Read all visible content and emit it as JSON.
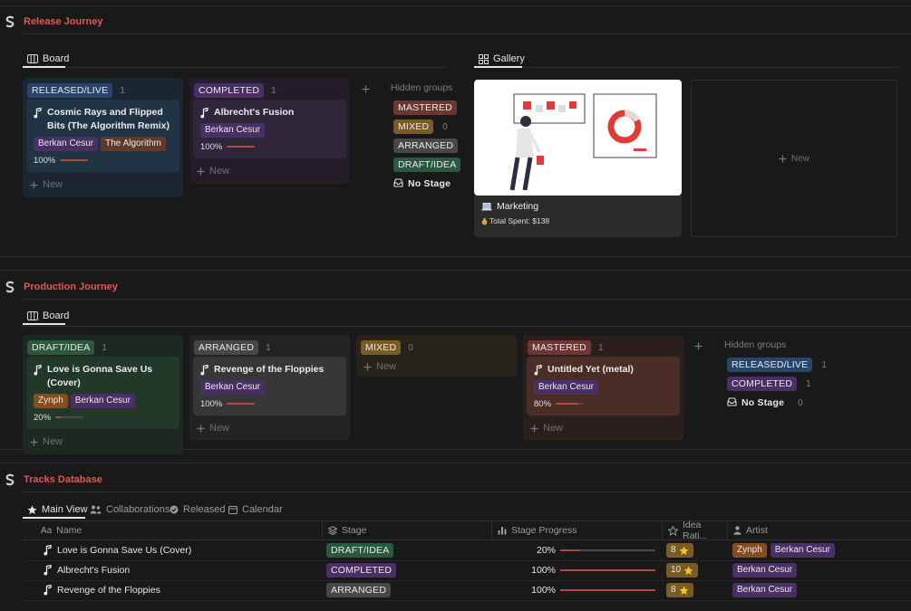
{
  "labels": {
    "new": "New",
    "hidden_groups": "Hidden groups"
  },
  "release_journey": {
    "title": "Release Journey",
    "board": {
      "tab": "Board",
      "columns": [
        {
          "stage": "RELEASED/LIVE",
          "color": "blue",
          "count": 1,
          "cards": [
            {
              "title": "Cosmic Rays and Flipped Bits (The Algorithm Remix)",
              "tags": [
                {
                  "name": "Berkan Cesur",
                  "color": "purple"
                },
                {
                  "name": "The Algorithm",
                  "color": "brown"
                }
              ],
              "progress": {
                "value": 100,
                "label": "100%"
              }
            }
          ]
        },
        {
          "stage": "COMPLETED",
          "color": "purple",
          "count": 1,
          "cards": [
            {
              "title": "Albrecht's Fusion",
              "tags": [
                {
                  "name": "Berkan Cesur",
                  "color": "purple"
                }
              ],
              "progress": {
                "value": 100,
                "label": "100%"
              }
            }
          ]
        }
      ],
      "hidden_groups": [
        {
          "stage": "MASTERED",
          "color": "red"
        },
        {
          "stage": "MIXED",
          "color": "yellow",
          "count": 0
        },
        {
          "stage": "ARRANGED",
          "color": "gray"
        },
        {
          "stage": "DRAFT/IDEA",
          "color": "green"
        },
        {
          "stage": "No Stage",
          "color": "none"
        }
      ]
    },
    "gallery": {
      "tab": "Gallery",
      "cards": [
        {
          "title": "Marketing",
          "property": "Total Spent: $138"
        }
      ]
    }
  },
  "production_journey": {
    "title": "Production Journey",
    "board": {
      "tab": "Board",
      "columns": [
        {
          "stage": "DRAFT/IDEA",
          "color": "green",
          "count": 1,
          "cards": [
            {
              "title": "Love is Gonna Save Us (Cover)",
              "tags": [
                {
                  "name": "Zynph",
                  "color": "orange"
                },
                {
                  "name": "Berkan Cesur",
                  "color": "purple"
                }
              ],
              "progress": {
                "value": 20,
                "label": "20%"
              }
            }
          ]
        },
        {
          "stage": "ARRANGED",
          "color": "gray",
          "count": 1,
          "cards": [
            {
              "title": "Revenge of the Floppies",
              "tags": [
                {
                  "name": "Berkan Cesur",
                  "color": "purple"
                }
              ],
              "progress": {
                "value": 100,
                "label": "100%"
              }
            }
          ]
        },
        {
          "stage": "MIXED",
          "color": "yellow",
          "count": 0,
          "cards": []
        },
        {
          "stage": "MASTERED",
          "color": "red",
          "count": 1,
          "cards": [
            {
              "title": "Untitled Yet (metal)",
              "tags": [
                {
                  "name": "Berkan Cesur",
                  "color": "purple"
                }
              ],
              "progress": {
                "value": 80,
                "label": "80%"
              }
            }
          ]
        }
      ],
      "hidden_groups": [
        {
          "stage": "RELEASED/LIVE",
          "color": "blue",
          "count": 1
        },
        {
          "stage": "COMPLETED",
          "color": "purple",
          "count": 1
        },
        {
          "stage": "No Stage",
          "color": "none",
          "count": 0
        }
      ]
    }
  },
  "tracks_database": {
    "title": "Tracks Database",
    "tabs": [
      "Main View",
      "Collaborations",
      "Released",
      "Calendar"
    ],
    "name_icon": "Aa",
    "columns": [
      "Name",
      "Stage",
      "Stage Progress",
      "Idea Rati...",
      "Artist"
    ],
    "rows": [
      {
        "name": "Love is Gonna Save Us (Cover)",
        "stage": "DRAFT/IDEA",
        "stage_color": "green",
        "progress": {
          "value": 20,
          "label": "20%"
        },
        "rating": 8,
        "artists": [
          {
            "name": "Zynph",
            "color": "orange"
          },
          {
            "name": "Berkan Cesur",
            "color": "purple"
          }
        ]
      },
      {
        "name": "Albrecht's Fusion",
        "stage": "COMPLETED",
        "stage_color": "purple",
        "progress": {
          "value": 100,
          "label": "100%"
        },
        "rating": 10,
        "artists": [
          {
            "name": "Berkan Cesur",
            "color": "purple"
          }
        ]
      },
      {
        "name": "Revenge of the Floppies",
        "stage": "ARRANGED",
        "stage_color": "gray",
        "progress": {
          "value": 100,
          "label": "100%"
        },
        "rating": 8,
        "artists": [
          {
            "name": "Berkan Cesur",
            "color": "purple"
          }
        ]
      }
    ]
  }
}
